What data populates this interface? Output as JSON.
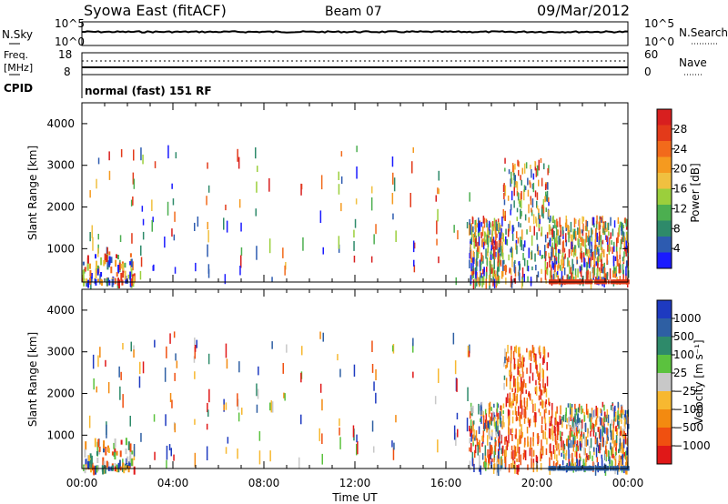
{
  "header": {
    "title": "Syowa East (fitACF)",
    "beam": "Beam 07",
    "date": "09/Mar/2012"
  },
  "panels": {
    "nsky": {
      "left_label": "N.Sky",
      "right_label": "N.Search",
      "left_ticks": [
        "10^5",
        "10^0"
      ],
      "right_ticks": [
        "10^5",
        "10^0"
      ]
    },
    "freq": {
      "left_label_1": "Freq.",
      "left_label_2": "[MHz]",
      "right_label": "Nave",
      "left_ticks": [
        "18",
        "8"
      ],
      "right_ticks": [
        "60",
        "0"
      ]
    },
    "cpid": {
      "label": "CPID",
      "text": "normal (fast) 151 RF"
    }
  },
  "colors": {
    "power": [
      "#1a1aff",
      "#2d5bb0",
      "#2e8a6a",
      "#4caf50",
      "#9bcf3c",
      "#f0c040",
      "#f59a1f",
      "#f26a1b",
      "#e33a1a",
      "#d81f1f"
    ],
    "velocity": [
      "#e01818",
      "#f05010",
      "#f38a10",
      "#f7b830",
      "#c8c8c8",
      "#5bc23e",
      "#2e8a6a",
      "#2e5fa3",
      "#1e3ac0"
    ]
  },
  "chart_data": [
    {
      "type": "heatmap",
      "name_of_panel": "power",
      "ylabel": "Slant Range [km]",
      "yticks": [
        "1000",
        "2000",
        "3000",
        "4000"
      ],
      "ylim": [
        200,
        4500
      ],
      "xlabel": "Time UT",
      "xticks": [
        "00:00",
        "04:00",
        "08:00",
        "12:00",
        "16:00",
        "20:00",
        "00:00"
      ],
      "xlim_hours": [
        0,
        24
      ],
      "colorbar_label": "Power [dB]",
      "colorbar_ticks": [
        "28",
        "24",
        "20",
        "16",
        "12",
        "8",
        "4"
      ],
      "clim": [
        0,
        30
      ]
    },
    {
      "type": "heatmap",
      "name_of_panel": "velocity",
      "ylabel": "Slant Range [km]",
      "yticks": [
        "1000",
        "2000",
        "3000",
        "4000"
      ],
      "ylim": [
        200,
        4500
      ],
      "xlabel": "Time UT",
      "xticks": [
        "00:00",
        "04:00",
        "08:00",
        "12:00",
        "16:00",
        "20:00",
        "00:00"
      ],
      "xlim_hours": [
        0,
        24
      ],
      "colorbar_label": "Velocity [m s⁻¹]",
      "colorbar_ticks": [
        "1000",
        "500",
        "100",
        "25",
        "−25",
        "−100",
        "−500",
        "−1000"
      ],
      "clim": [
        -1000,
        1000
      ]
    }
  ]
}
